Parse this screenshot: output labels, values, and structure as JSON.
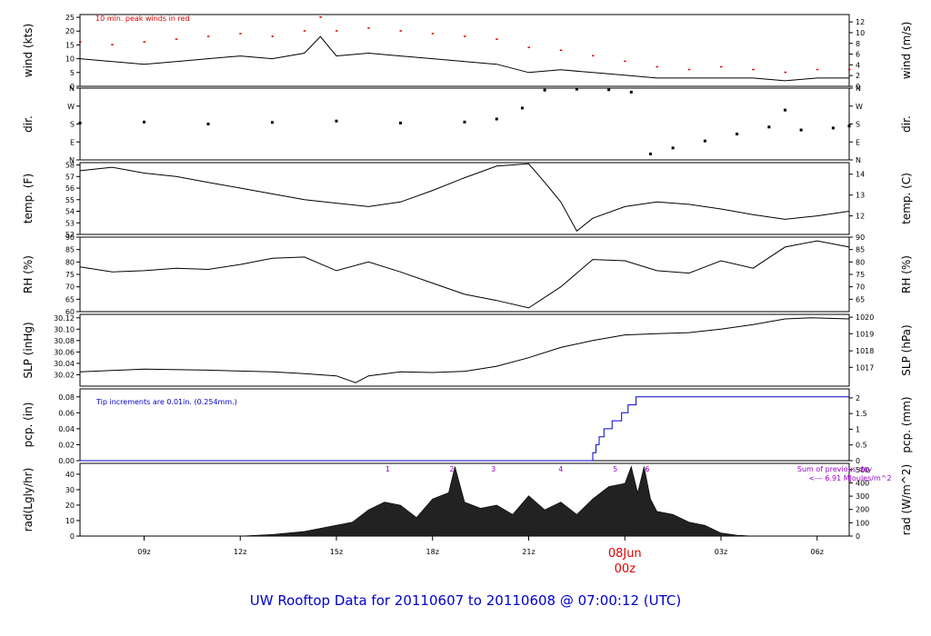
{
  "title": "UW Rooftop Data for 20110607  to  20110608 @ 07:00:12  (UTC)",
  "colors": {
    "axis": "#000000",
    "peak": "#dd0000",
    "precip": "#0000cc",
    "radnote": "#9900cc",
    "title": "#0000cc",
    "day": "#dd0000"
  },
  "x_axis": {
    "tick_hours": [
      9,
      12,
      15,
      18,
      21,
      24,
      27,
      30
    ],
    "tick_labels": [
      "09z",
      "12z",
      "15z",
      "18z",
      "21z",
      "",
      "03z",
      "06z"
    ],
    "range_hours": [
      7.0,
      31.0
    ],
    "day_marker": {
      "hour": 24,
      "date": "08Jun",
      "time": "00z"
    }
  },
  "chart_data": [
    {
      "type": "line",
      "name": "wind",
      "ylabel": "wind (kts)",
      "ylabel_right": "wind (m/s)",
      "ylim": [
        0,
        26
      ],
      "yticks": [
        0,
        5,
        10,
        15,
        20,
        25
      ],
      "yticks_right": [
        {
          "v": 0,
          "y": 0
        },
        {
          "v": 2,
          "y": 3.89
        },
        {
          "v": 4,
          "y": 7.78
        },
        {
          "v": 6,
          "y": 11.66
        },
        {
          "v": 8,
          "y": 15.55
        },
        {
          "v": 10,
          "y": 19.44
        },
        {
          "v": 12,
          "y": 23.33
        }
      ],
      "annotation": "10 min. peak winds in red",
      "x": [
        7,
        8,
        9,
        10,
        11,
        12,
        13,
        14,
        14.5,
        15,
        16,
        17,
        18,
        19,
        20,
        21,
        22,
        23,
        24,
        25,
        26,
        27,
        28,
        29,
        30,
        31
      ],
      "values": [
        10,
        9,
        8,
        9,
        10,
        11,
        10,
        12,
        18,
        11,
        12,
        11,
        10,
        9,
        8,
        5,
        6,
        5,
        4,
        3,
        3,
        3,
        3,
        2,
        3,
        3
      ],
      "peaks_x": [
        7,
        8,
        9,
        10,
        11,
        12,
        13,
        14,
        14.5,
        15,
        16,
        17,
        18,
        19,
        20,
        21,
        22,
        23,
        24,
        25,
        26,
        27,
        28,
        29,
        30,
        31
      ],
      "peaks": [
        16,
        15,
        16,
        17,
        18,
        19,
        18,
        20,
        25,
        20,
        21,
        20,
        19,
        18,
        17,
        14,
        13,
        11,
        9,
        7,
        6,
        7,
        6,
        5,
        6,
        6
      ]
    },
    {
      "type": "scatter",
      "name": "dir",
      "ylabel": "dir.",
      "ylabel_right": "dir.",
      "ylim": [
        0,
        360
      ],
      "ytick_values": [
        0,
        90,
        180,
        270,
        360
      ],
      "ytick_labels": [
        "N",
        "E",
        "S",
        "W",
        "N"
      ],
      "x": [
        7,
        9,
        11,
        13,
        15,
        17,
        19,
        20,
        20.8,
        21.5,
        22.5,
        23.5,
        24.2,
        24.8,
        25.5,
        26.5,
        27.5,
        28.5,
        29,
        29.5,
        30.5,
        31
      ],
      "values": [
        185,
        190,
        180,
        188,
        195,
        185,
        190,
        205,
        260,
        350,
        355,
        352,
        340,
        30,
        60,
        95,
        130,
        165,
        250,
        150,
        160,
        170
      ]
    },
    {
      "type": "line",
      "name": "temp",
      "ylabel": "temp. (F)",
      "ylabel_right": "temp. (C)",
      "ylim": [
        52,
        58.2
      ],
      "yticks": [
        52,
        53,
        54,
        55,
        56,
        57,
        58
      ],
      "yticks_right": [
        {
          "v": 12,
          "y": 53.6
        },
        {
          "v": 13,
          "y": 55.4
        },
        {
          "v": 14,
          "y": 57.2
        }
      ],
      "x": [
        7,
        8,
        9,
        10,
        11,
        12,
        13,
        14,
        15,
        16,
        17,
        18,
        19,
        20,
        21,
        21.5,
        22,
        22.5,
        23,
        24,
        25,
        26,
        27,
        28,
        29,
        30,
        31
      ],
      "values": [
        57.5,
        57.8,
        57.3,
        57,
        56.5,
        56,
        55.5,
        55,
        54.7,
        54.4,
        54.8,
        55.8,
        56.9,
        57.9,
        58.1,
        56.5,
        54.8,
        52.3,
        53.4,
        54.4,
        54.8,
        54.6,
        54.2,
        53.7,
        53.3,
        53.6,
        54
      ]
    },
    {
      "type": "line",
      "name": "rh",
      "ylabel": "RH (%)",
      "ylabel_right": "RH (%)",
      "ylim": [
        60,
        90
      ],
      "yticks": [
        60,
        65,
        70,
        75,
        80,
        85,
        90
      ],
      "yticks_right": [
        {
          "v": 65,
          "y": 65
        },
        {
          "v": 70,
          "y": 70
        },
        {
          "v": 75,
          "y": 75
        },
        {
          "v": 80,
          "y": 80
        },
        {
          "v": 85,
          "y": 85
        },
        {
          "v": 90,
          "y": 90
        }
      ],
      "x": [
        7,
        8,
        9,
        10,
        11,
        12,
        13,
        14,
        15,
        16,
        17,
        18,
        19,
        20,
        21,
        22,
        23,
        24,
        25,
        26,
        27,
        28,
        29,
        30,
        31
      ],
      "values": [
        78,
        76,
        76.5,
        77.5,
        77,
        79,
        81.5,
        82,
        76.5,
        80,
        76,
        71.5,
        67,
        64.5,
        61.5,
        70,
        81,
        80.5,
        76.5,
        75.5,
        80.5,
        77.5,
        86,
        88.5,
        86
      ]
    },
    {
      "type": "line",
      "name": "slp",
      "ylabel": "SLP (inHg)",
      "ylabel_right": "SLP (hPa)",
      "ylim": [
        30.0,
        30.126
      ],
      "yticks": [
        30.02,
        30.04,
        30.06,
        30.08,
        30.1,
        30.12
      ],
      "ytick_labels": [
        "30.02",
        "30.04",
        "30.06",
        "30.08",
        "30.10",
        "30.12"
      ],
      "yticks_right": [
        {
          "v": 1017,
          "y": 30.033
        },
        {
          "v": 1018,
          "y": 30.062
        },
        {
          "v": 1019,
          "y": 30.092
        },
        {
          "v": 1020,
          "y": 30.121
        }
      ],
      "x": [
        7,
        9,
        11,
        13,
        14,
        15,
        15.6,
        16,
        17,
        18,
        19,
        20,
        21,
        22,
        23,
        24,
        25,
        26,
        27,
        28,
        29,
        29.8,
        31
      ],
      "values": [
        30.025,
        30.03,
        30.028,
        30.025,
        30.022,
        30.018,
        30.006,
        30.018,
        30.025,
        30.024,
        30.026,
        30.035,
        30.05,
        30.068,
        30.08,
        30.09,
        30.092,
        30.094,
        30.1,
        30.108,
        30.118,
        30.12,
        30.118
      ]
    },
    {
      "type": "line",
      "name": "pcp",
      "ylabel": "pcp. (in)",
      "ylabel_right": "pcp. (mm)",
      "ylim": [
        0,
        0.09
      ],
      "yticks": [
        0,
        0.02,
        0.04,
        0.06,
        0.08
      ],
      "ytick_labels": [
        "0.00",
        "0.02",
        "0.04",
        "0.06",
        "0.08"
      ],
      "yticks_right": [
        {
          "v": "0",
          "y": 0
        },
        {
          "v": "0.5",
          "y": 0.0197
        },
        {
          "v": "1",
          "y": 0.0394
        },
        {
          "v": "1.5",
          "y": 0.0591
        },
        {
          "v": "2",
          "y": 0.0787
        }
      ],
      "annotation": "Tip increments are 0.01in. (0.254mm.)",
      "x": [
        7,
        22.9,
        23.0,
        23.1,
        23.2,
        23.35,
        23.6,
        23.9,
        24.1,
        24.35,
        31
      ],
      "values": [
        0,
        0,
        0.01,
        0.02,
        0.03,
        0.04,
        0.05,
        0.06,
        0.07,
        0.08,
        0.08
      ]
    },
    {
      "type": "area",
      "name": "rad",
      "ylabel": "rad(Lgly/hr)",
      "ylabel_right": "rad (W/m^2)",
      "ylim": [
        0,
        47
      ],
      "yticks": [
        0,
        10,
        20,
        30,
        40
      ],
      "yticks_right": [
        {
          "v": 0,
          "y": 0
        },
        {
          "v": 100,
          "y": 8.6
        },
        {
          "v": 200,
          "y": 17.2
        },
        {
          "v": 300,
          "y": 25.8
        },
        {
          "v": 400,
          "y": 34.4
        },
        {
          "v": 500,
          "y": 43
        }
      ],
      "annotation": [
        "Sum of previous day",
        "<--- 6.91 MJoules/m^2"
      ],
      "markers": [
        {
          "label": "1",
          "x": 16.6
        },
        {
          "label": "2",
          "x": 18.6
        },
        {
          "label": "3",
          "x": 19.9
        },
        {
          "label": "4",
          "x": 22.0
        },
        {
          "label": "5",
          "x": 23.7
        },
        {
          "label": "6",
          "x": 24.7
        }
      ],
      "x": [
        12,
        13,
        14,
        15,
        15.5,
        16,
        16.5,
        17,
        17.5,
        18,
        18.5,
        18.7,
        19,
        19.5,
        20,
        20.5,
        21,
        21.5,
        22,
        22.5,
        23,
        23.5,
        24,
        24.2,
        24.4,
        24.6,
        24.8,
        25,
        25.5,
        26,
        26.5,
        27,
        27.5,
        28
      ],
      "values": [
        0,
        1,
        3,
        7,
        9,
        17,
        22,
        20,
        12,
        24,
        28,
        45,
        22,
        18,
        20,
        14,
        26,
        17,
        22,
        14,
        24,
        32,
        34,
        45,
        28,
        45,
        24,
        16,
        14,
        9,
        7,
        2,
        0.5,
        0
      ]
    }
  ]
}
